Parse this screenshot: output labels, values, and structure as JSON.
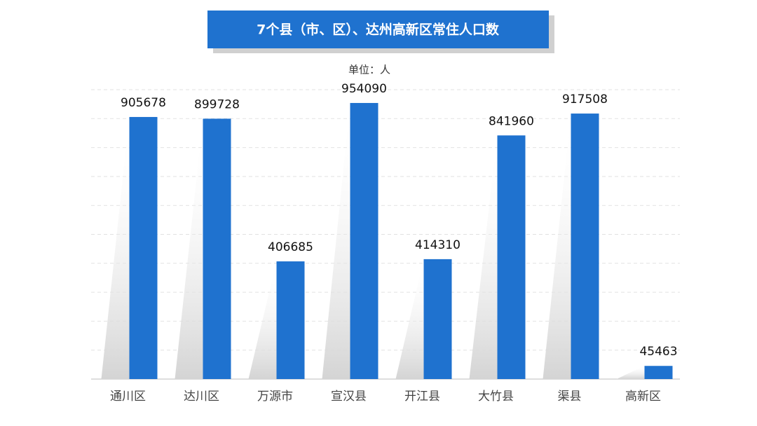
{
  "chart_data": {
    "type": "bar",
    "title": "7个县（市、区）、达州高新区常住人口数",
    "subtitle": "单位：人",
    "categories": [
      "通川区",
      "达川区",
      "万源市",
      "宣汉县",
      "开江县",
      "大竹县",
      "渠县",
      "高新区"
    ],
    "values": [
      905678,
      899728,
      406685,
      954090,
      414310,
      841960,
      917508,
      45463
    ],
    "color": "#1f72cf",
    "ylim": [
      0,
      1000000
    ],
    "yticks": [
      0,
      100000,
      200000,
      300000,
      400000,
      500000,
      600000,
      700000,
      800000,
      900000,
      1000000
    ],
    "grid": true
  }
}
